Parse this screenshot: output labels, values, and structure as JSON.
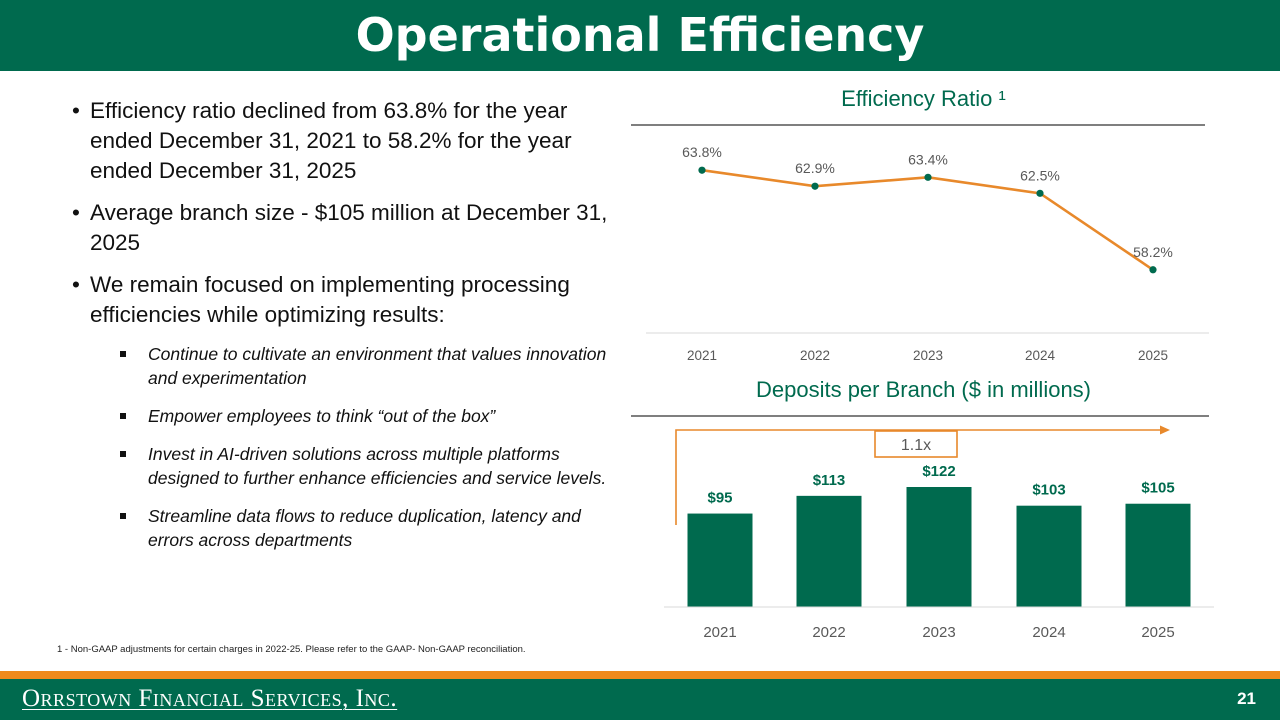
{
  "title": "Operational Efficiency",
  "bullets": [
    "Efficiency ratio declined from 63.8% for the year ended December 31, 2021 to 58.2% for the year ended December 31, 2025",
    "Average branch size - $105 million at December 31, 2025",
    "We remain focused on implementing processing efficiencies while optimizing results:"
  ],
  "sub_bullets": [
    "Continue to cultivate an environment that values innovation and experimentation",
    "Empower employees to think “out of the box”",
    "Invest in AI-driven solutions across multiple platforms designed to further enhance efficiencies and service levels.",
    "Streamline data flows to reduce duplication, latency and errors across departments"
  ],
  "footnote": "1 - Non-GAAP adjustments for certain charges in 2022-25. Please refer to the GAAP- Non-GAAP reconciliation.",
  "footer": {
    "company": "Orrstown Financial Services, Inc.",
    "page": "21"
  },
  "colors": {
    "brand_green": "#006a4e",
    "accent_orange": "#f08a1c",
    "line_orange": "#e8892b"
  },
  "chart_data": [
    {
      "type": "line",
      "title": "Efficiency Ratio ¹",
      "categories": [
        "2021",
        "2022",
        "2023",
        "2024",
        "2025"
      ],
      "values": [
        63.8,
        62.9,
        63.4,
        62.5,
        58.2
      ],
      "data_labels": [
        "63.8%",
        "62.9%",
        "63.4%",
        "62.5%",
        "58.2%"
      ],
      "ylim": [
        56.5,
        65.5
      ],
      "grid": false,
      "legend": "none"
    },
    {
      "type": "bar",
      "title": "Deposits per Branch ($ in millions)",
      "categories": [
        "2021",
        "2022",
        "2023",
        "2024",
        "2025"
      ],
      "values": [
        95,
        113,
        122,
        103,
        105
      ],
      "data_labels": [
        "$95",
        "$113",
        "$122",
        "$103",
        "$105"
      ],
      "ylim": [
        0,
        150
      ],
      "annotation": "1.1x",
      "grid": false,
      "legend": "none"
    }
  ]
}
